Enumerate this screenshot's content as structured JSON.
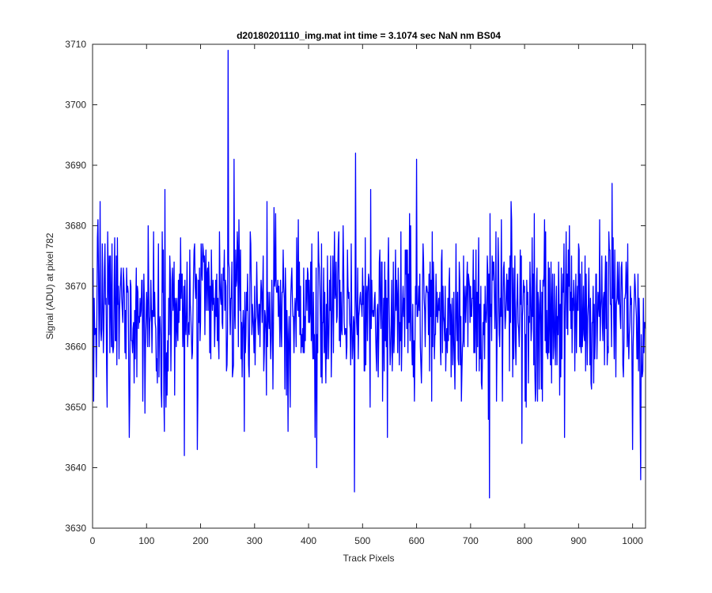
{
  "chart_data": {
    "type": "line",
    "title": "d20180201110_img.mat int time = 3.1074 sec  NaN nm BS04",
    "xlabel": "Track Pixels",
    "ylabel": "Signal (ADU) at pixel 782",
    "xlim": [
      0,
      1024
    ],
    "ylim": [
      3630,
      3710
    ],
    "xticks": [
      0,
      100,
      200,
      300,
      400,
      500,
      600,
      700,
      800,
      900,
      1000
    ],
    "yticks": [
      3630,
      3640,
      3650,
      3660,
      3670,
      3680,
      3690,
      3700,
      3710
    ],
    "grid": false,
    "line_color": "#0000ff",
    "series": [
      {
        "x_start": 1,
        "x_step": 1,
        "noise_range": [
          3646,
          3686
        ],
        "mean": 3665.5,
        "spikes": [
          {
            "x": 2,
            "y": 3651
          },
          {
            "x": 14,
            "y": 3684
          },
          {
            "x": 27,
            "y": 3650
          },
          {
            "x": 68,
            "y": 3645
          },
          {
            "x": 97,
            "y": 3649
          },
          {
            "x": 133,
            "y": 3646
          },
          {
            "x": 134,
            "y": 3686
          },
          {
            "x": 170,
            "y": 3642
          },
          {
            "x": 194,
            "y": 3643
          },
          {
            "x": 251,
            "y": 3709
          },
          {
            "x": 262,
            "y": 3691
          },
          {
            "x": 281,
            "y": 3646
          },
          {
            "x": 323,
            "y": 3684
          },
          {
            "x": 362,
            "y": 3646
          },
          {
            "x": 412,
            "y": 3645
          },
          {
            "x": 415,
            "y": 3640
          },
          {
            "x": 485,
            "y": 3636
          },
          {
            "x": 487,
            "y": 3692
          },
          {
            "x": 515,
            "y": 3686
          },
          {
            "x": 546,
            "y": 3645
          },
          {
            "x": 600,
            "y": 3691
          },
          {
            "x": 733,
            "y": 3648
          },
          {
            "x": 735,
            "y": 3635
          },
          {
            "x": 795,
            "y": 3644
          },
          {
            "x": 874,
            "y": 3645
          },
          {
            "x": 962,
            "y": 3687
          },
          {
            "x": 1000,
            "y": 3643
          },
          {
            "x": 1015,
            "y": 3638
          }
        ],
        "count": 1024
      }
    ]
  }
}
